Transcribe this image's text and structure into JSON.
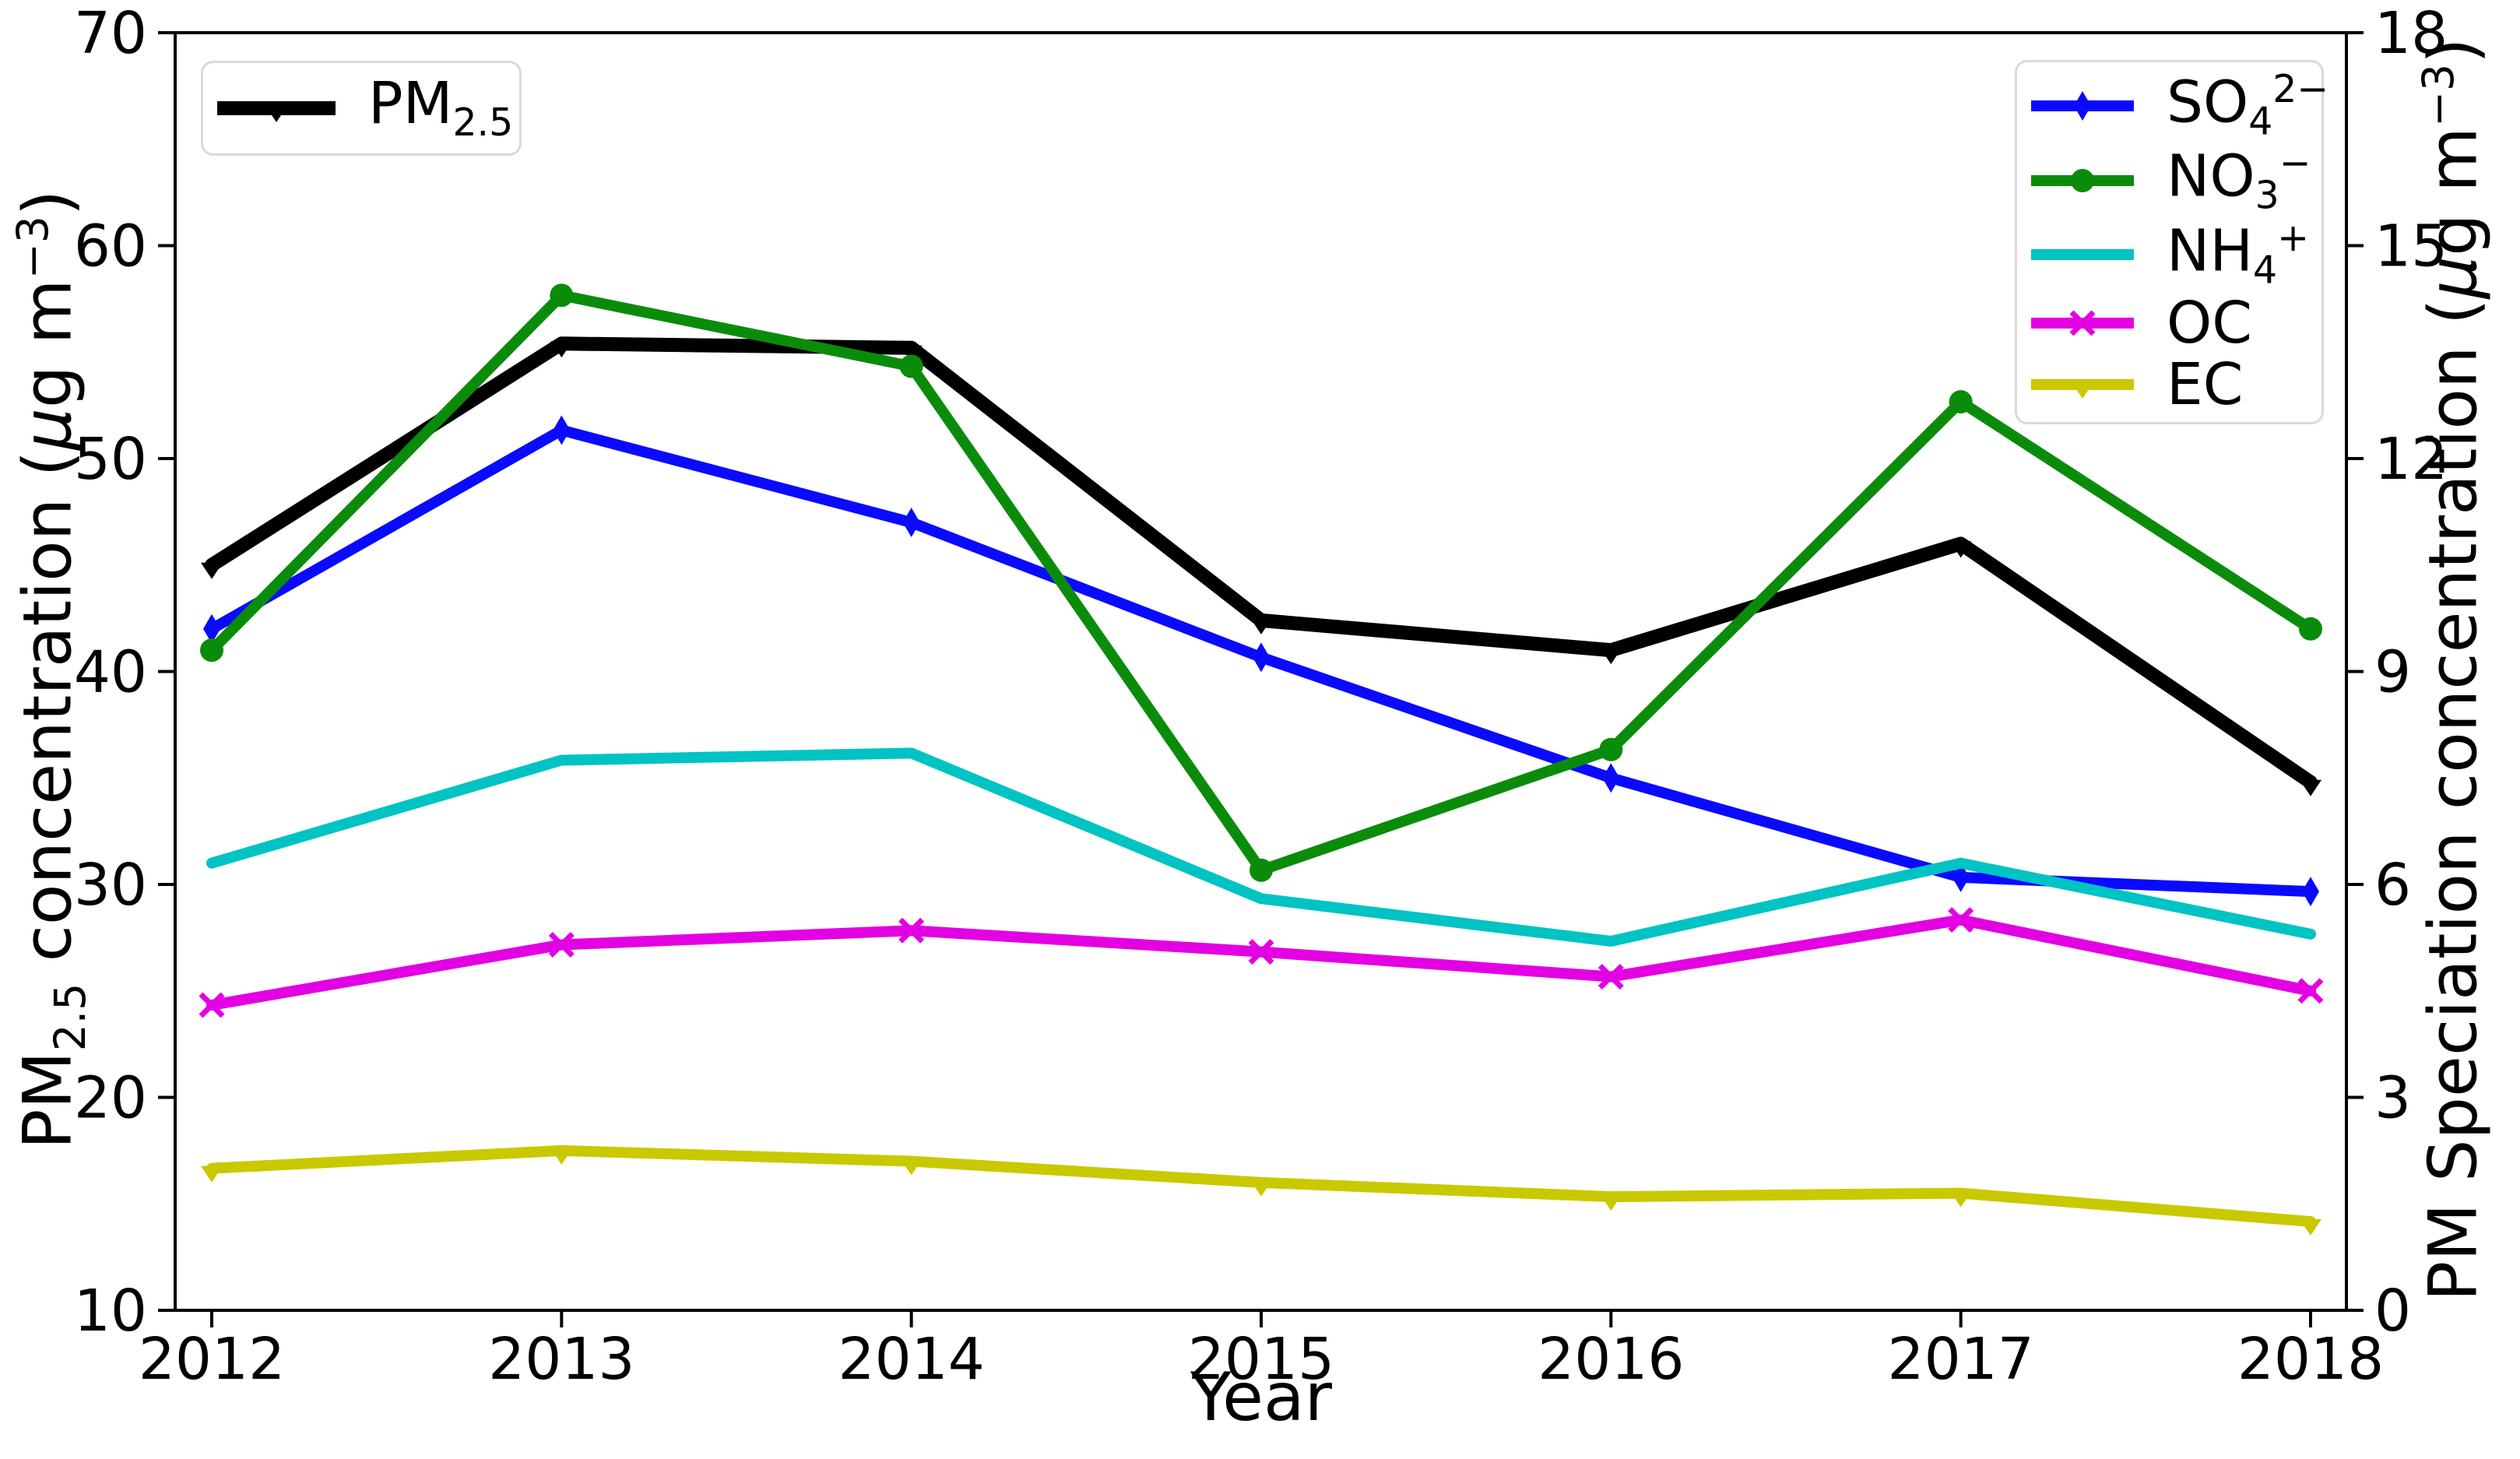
{
  "figure": {
    "left_axis_title": {
      "pre": "PM",
      "sub": "2.5",
      "mid": " concentration (",
      "mu": "μ",
      "unit": "g m",
      "sup": "−3",
      "post": ")"
    },
    "right_axis_title": {
      "pre": "PM Speciation concentration (",
      "mu": "μ",
      "unit": "g m",
      "sup": "−3",
      "post": ")"
    },
    "x_axis_title": "Year"
  },
  "legend": {
    "pm25": {
      "base": "PM",
      "sub": "2.5"
    },
    "so4": {
      "base": "SO",
      "sub": "4",
      "sup": "2−"
    },
    "no3": {
      "base": "NO",
      "sub": "3",
      "sup": "−"
    },
    "nh4": {
      "base": "NH",
      "sub": "4",
      "sup": "+"
    },
    "oc": {
      "base": "OC"
    },
    "ec": {
      "base": "EC"
    }
  },
  "chart_data": {
    "type": "line",
    "x": [
      2012,
      2013,
      2014,
      2015,
      2016,
      2017,
      2018
    ],
    "xlabel": "Year",
    "left_ylabel": "PM2.5 concentration (ug m-3)",
    "right_ylabel": "PM Speciation concentration (ug m-3)",
    "left_ylim": [
      10,
      70
    ],
    "right_ylim": [
      0,
      18
    ],
    "left_yticks": [
      70,
      60,
      50,
      40,
      30,
      20,
      10
    ],
    "right_yticks": [
      18,
      15,
      12,
      9,
      6,
      3,
      0
    ],
    "grid": false,
    "legend_positions": [
      "upper left: PM2.5",
      "upper right: species"
    ],
    "series": [
      {
        "key": "PM2.5",
        "name": "PM2.5",
        "axis": "left",
        "color": "#000000",
        "marker": "tri",
        "width": 18,
        "values": [
          45.0,
          55.4,
          55.2,
          42.4,
          41.0,
          46.0,
          34.8
        ]
      },
      {
        "key": "SO4",
        "name": "SO4 2-",
        "axis": "right",
        "color": "#0a0aff",
        "marker": "diamond",
        "width": 14,
        "values": [
          9.6,
          12.4,
          11.1,
          9.2,
          7.5,
          6.1,
          5.9
        ]
      },
      {
        "key": "NO3",
        "name": "NO3 -",
        "axis": "right",
        "color": "#0a8c0a",
        "marker": "circle",
        "width": 14,
        "values": [
          9.3,
          14.3,
          13.3,
          6.2,
          7.9,
          12.8,
          9.6
        ]
      },
      {
        "key": "NH4",
        "name": "NH4 +",
        "axis": "right",
        "color": "#00c3c3",
        "marker": "none",
        "width": 14,
        "values": [
          6.3,
          7.75,
          7.85,
          5.8,
          5.2,
          6.3,
          5.3
        ]
      },
      {
        "key": "OC",
        "name": "OC",
        "axis": "right",
        "color": "#e300e3",
        "marker": "x",
        "width": 14,
        "values": [
          4.3,
          5.15,
          5.35,
          5.05,
          4.7,
          5.5,
          4.5
        ]
      },
      {
        "key": "EC",
        "name": "EC",
        "axis": "right",
        "color": "#c9c900",
        "marker": "tri",
        "width": 14,
        "values": [
          2.0,
          2.25,
          2.1,
          1.8,
          1.6,
          1.65,
          1.25
        ]
      }
    ]
  }
}
